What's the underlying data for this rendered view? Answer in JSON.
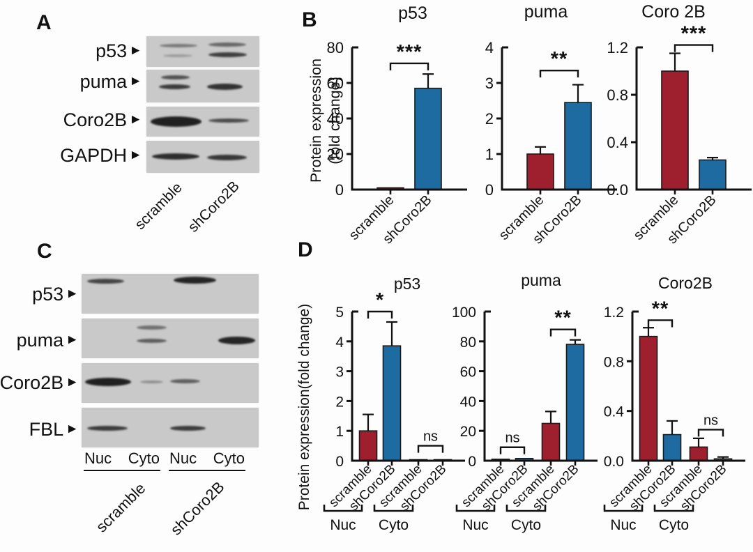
{
  "colors": {
    "scramble": "#9E1F2E",
    "shCoro2B": "#1E6BA1",
    "band": "#181818",
    "blot_bg": "#c9c9c9",
    "axis": "#111111"
  },
  "panelA": {
    "letter": "A",
    "row_labels": [
      "p53",
      "puma",
      "Coro2B",
      "GAPDH"
    ],
    "arrow_icon": "►",
    "lane_labels": [
      "scramble",
      "shCoro2B"
    ],
    "blots": [
      {
        "bands": [
          [
            12,
            24,
            33,
            5,
            0.45
          ],
          [
            15,
            58,
            26,
            4,
            0.25
          ],
          [
            55,
            20,
            33,
            6,
            0.55
          ],
          [
            55,
            52,
            34,
            7,
            0.78
          ]
        ]
      },
      {
        "bands": [
          [
            13,
            16,
            25,
            6,
            0.68
          ],
          [
            11,
            44,
            28,
            7,
            0.8
          ],
          [
            54,
            42,
            31,
            9,
            0.85
          ]
        ]
      },
      {
        "bands": [
          [
            4,
            33,
            45,
            15,
            0.95
          ],
          [
            55,
            40,
            36,
            6,
            0.7
          ]
        ]
      },
      {
        "bands": [
          [
            5,
            40,
            42,
            9,
            0.88
          ],
          [
            54,
            43,
            35,
            8,
            0.82
          ]
        ]
      }
    ]
  },
  "panelC": {
    "letter": "C",
    "row_labels": [
      "p53",
      "puma",
      "Coro2B",
      "FBL"
    ],
    "arrow_icon": "►",
    "fractions": [
      "Nuc",
      "Cyto",
      "Nuc",
      "Cyto"
    ],
    "conditions": [
      "scramble",
      "shCoro2B"
    ],
    "blots": [
      {
        "bands": [
          [
            3,
            13,
            21,
            7,
            0.75
          ],
          [
            52,
            7,
            24,
            10,
            0.92
          ]
        ]
      },
      {
        "bands": [
          [
            31,
            18,
            17,
            6,
            0.5
          ],
          [
            31,
            50,
            17,
            6,
            0.6
          ],
          [
            77,
            46,
            21,
            11,
            0.92
          ]
        ]
      },
      {
        "bands": [
          [
            2,
            36,
            26,
            12,
            0.95
          ],
          [
            33,
            43,
            13,
            4,
            0.33
          ],
          [
            50,
            40,
            17,
            6,
            0.6
          ]
        ]
      },
      {
        "bands": [
          [
            3,
            45,
            23,
            7,
            0.8
          ],
          [
            50,
            45,
            20,
            7,
            0.8
          ]
        ]
      }
    ]
  },
  "panelB": {
    "letter": "B",
    "ylabel_line1": "Protein expression",
    "ylabel_line2": "(fold change)"
  },
  "panelD": {
    "letter": "D",
    "ylabel": "Protein expression(fold change)"
  },
  "chart_data": [
    {
      "panel": "B",
      "type": "bar",
      "kind": "pair",
      "title": "p53",
      "ylim": [
        0,
        80
      ],
      "tick_vals": [
        0,
        20,
        40,
        60,
        80
      ],
      "tick_labels": [
        "0",
        "20",
        "40",
        "60",
        "80"
      ],
      "categories": [
        "scramble",
        "shCoro2B"
      ],
      "values": [
        1,
        57
      ],
      "errors": [
        0,
        8
      ],
      "bar_colors": [
        "scramble",
        "shCoro2B"
      ],
      "sig": [
        {
          "bars": [
            0,
            1
          ],
          "label": "***",
          "y": 71
        }
      ],
      "ylabel": "Protein expression (fold change)",
      "grid": false
    },
    {
      "panel": "B",
      "type": "bar",
      "kind": "pair",
      "title": "puma",
      "ylim": [
        0,
        4
      ],
      "tick_vals": [
        0,
        1,
        2,
        3,
        4
      ],
      "tick_labels": [
        "0",
        "1",
        "2",
        "3",
        "4"
      ],
      "categories": [
        "scramble",
        "shCoro2B"
      ],
      "values": [
        1,
        2.45
      ],
      "errors": [
        0.2,
        0.5
      ],
      "bar_colors": [
        "scramble",
        "shCoro2B"
      ],
      "sig": [
        {
          "bars": [
            0,
            1
          ],
          "label": "**",
          "y": 3.35
        }
      ],
      "ylabel": "Protein expression (fold change)",
      "grid": false
    },
    {
      "panel": "B",
      "type": "bar",
      "kind": "pair",
      "title": "Coro 2B",
      "ylim": [
        0,
        1.2
      ],
      "tick_vals": [
        0,
        0.4,
        0.8,
        1.2
      ],
      "tick_labels": [
        "0.0",
        "0.4",
        "0.8",
        "1.2"
      ],
      "categories": [
        "scramble",
        "shCoro2B"
      ],
      "values": [
        1,
        0.25
      ],
      "errors": [
        0.15,
        0.02
      ],
      "bar_colors": [
        "scramble",
        "shCoro2B"
      ],
      "sig": [
        {
          "bars": [
            0,
            1
          ],
          "label": "***",
          "y": 1.22
        }
      ],
      "ylabel": "Protein expression (fold change)",
      "grid": false
    },
    {
      "panel": "D",
      "type": "bar",
      "kind": "quad",
      "title": "p53",
      "ylim": [
        0,
        5
      ],
      "tick_vals": [
        0,
        1,
        2,
        3,
        4,
        5
      ],
      "tick_labels": [
        "0",
        "1",
        "2",
        "3",
        "4",
        "5"
      ],
      "categories": [
        "scramble",
        "shCoro2B",
        "scramble",
        "shCoro2B"
      ],
      "values": [
        1,
        3.85,
        0.02,
        0.02
      ],
      "errors": [
        0.55,
        0.8,
        0,
        0
      ],
      "bar_colors": [
        "scramble",
        "shCoro2B",
        "scramble",
        "shCoro2B"
      ],
      "sig": [
        {
          "bars": [
            0,
            1
          ],
          "label": "*",
          "y": 5.0
        },
        {
          "bars": [
            2,
            3
          ],
          "label": "ns",
          "y": 0.5
        }
      ],
      "groups": [
        {
          "label": "Nuc",
          "bars": [
            0,
            1
          ]
        },
        {
          "label": "Cyto",
          "bars": [
            2,
            3
          ]
        }
      ],
      "ylabel": "Protein expression(fold change)",
      "grid": false
    },
    {
      "panel": "D",
      "type": "bar",
      "kind": "quad",
      "title": "puma",
      "ylim": [
        0,
        100
      ],
      "tick_vals": [
        0,
        20,
        40,
        60,
        80,
        100
      ],
      "tick_labels": [
        "0",
        "20",
        "40",
        "60",
        "80",
        "100"
      ],
      "categories": [
        "scramble",
        "shCoro2B",
        "scramble",
        "shCoro2B"
      ],
      "values": [
        1,
        1.5,
        25,
        78
      ],
      "errors": [
        0,
        0,
        8,
        3
      ],
      "bar_colors": [
        "scramble",
        "shCoro2B",
        "scramble",
        "shCoro2B"
      ],
      "sig": [
        {
          "bars": [
            0,
            1
          ],
          "label": "ns",
          "y": 9
        },
        {
          "bars": [
            2,
            3
          ],
          "label": "**",
          "y": 88
        }
      ],
      "groups": [
        {
          "label": "Nuc",
          "bars": [
            0,
            1
          ]
        },
        {
          "label": "Cyto",
          "bars": [
            2,
            3
          ]
        }
      ],
      "ylabel": "Protein expression(fold change)",
      "grid": false
    },
    {
      "panel": "D",
      "type": "bar",
      "kind": "quad",
      "title": "Coro2B",
      "ylim": [
        0,
        1.2
      ],
      "tick_vals": [
        0,
        0.4,
        0.8,
        1.2
      ],
      "tick_labels": [
        "0.0",
        "0.4",
        "0.8",
        "1.2"
      ],
      "categories": [
        "scramble",
        "shCoro2B",
        "scramble",
        "shCoro2B"
      ],
      "values": [
        1,
        0.21,
        0.11,
        0.015
      ],
      "errors": [
        0.07,
        0.11,
        0.07,
        0.015
      ],
      "bar_colors": [
        "scramble",
        "shCoro2B",
        "scramble",
        "shCoro2B"
      ],
      "sig": [
        {
          "bars": [
            0,
            1
          ],
          "label": "**",
          "y": 1.13
        },
        {
          "bars": [
            2,
            3
          ],
          "label": "ns",
          "y": 0.25
        }
      ],
      "groups": [
        {
          "label": "Nuc",
          "bars": [
            0,
            1
          ]
        },
        {
          "label": "Cyto",
          "bars": [
            2,
            3
          ]
        }
      ],
      "ylabel": "Protein expression(fold change)",
      "grid": false
    }
  ]
}
